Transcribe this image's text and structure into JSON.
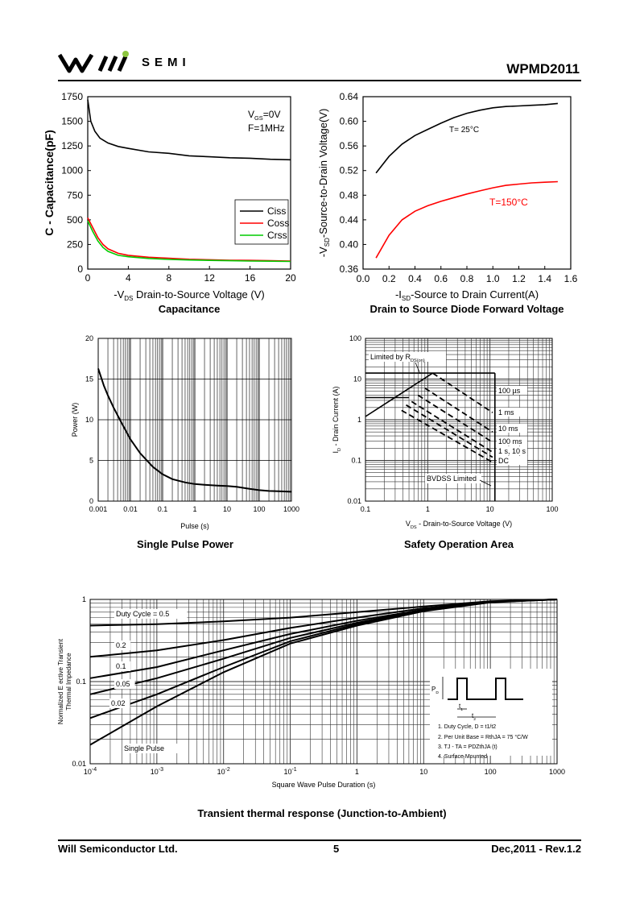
{
  "header": {
    "brand": "SEMI",
    "part_number": "WPMD2011",
    "accent_color": "#8dc63f"
  },
  "footer": {
    "company": "Will  Semiconductor  Ltd.",
    "page": "5",
    "revision": "Dec,2011 - Rev.1.2"
  },
  "chart_data": [
    {
      "id": "capacitance",
      "type": "line",
      "title": "Capacitance",
      "xlabel": "-V_DS Drain-to-Source Voltage (V)",
      "ylabel": "C - Capacitance(pF)",
      "xlim": [
        0,
        20
      ],
      "ylim": [
        0,
        1750
      ],
      "xticks": [
        0,
        4,
        8,
        12,
        16,
        20
      ],
      "yticks": [
        0,
        250,
        500,
        750,
        1000,
        1250,
        1500,
        1750
      ],
      "annotations": [
        "V_GS=0V",
        "F=1MHz"
      ],
      "series": [
        {
          "name": "Ciss",
          "color": "#000000",
          "x": [
            0,
            0.3,
            0.7,
            1.2,
            2,
            3,
            4,
            6,
            8,
            10,
            12,
            14,
            16,
            18,
            20
          ],
          "y": [
            1720,
            1500,
            1400,
            1330,
            1280,
            1245,
            1225,
            1190,
            1175,
            1150,
            1140,
            1130,
            1125,
            1115,
            1110
          ]
        },
        {
          "name": "Coss",
          "color": "#ff0000",
          "x": [
            0,
            0.5,
            1,
            1.5,
            2,
            3,
            4,
            6,
            8,
            10,
            12,
            14,
            16,
            18,
            20
          ],
          "y": [
            520,
            420,
            320,
            250,
            205,
            160,
            140,
            120,
            110,
            100,
            95,
            90,
            88,
            85,
            82
          ]
        },
        {
          "name": "Crss",
          "color": "#00cc00",
          "x": [
            0,
            0.5,
            1,
            1.5,
            2,
            3,
            4,
            6,
            8,
            10,
            12,
            14,
            16,
            18,
            20
          ],
          "y": [
            490,
            380,
            285,
            220,
            180,
            140,
            125,
            108,
            98,
            92,
            88,
            85,
            82,
            80,
            78
          ]
        }
      ]
    },
    {
      "id": "diode",
      "type": "line",
      "title": "Drain to Source Diode Forward Voltage",
      "xlabel": "-I_SD-Source to Drain Current(A)",
      "ylabel": "-V_SD-Source-to-Drain Voltage(V)",
      "xlim": [
        0,
        1.6
      ],
      "ylim": [
        0.36,
        0.64
      ],
      "xticks": [
        0.0,
        0.2,
        0.4,
        0.6,
        0.8,
        1.0,
        1.2,
        1.4,
        1.6
      ],
      "yticks": [
        0.36,
        0.4,
        0.44,
        0.48,
        0.52,
        0.56,
        0.6,
        0.64
      ],
      "series": [
        {
          "name": "T= 25°C",
          "color": "#000000",
          "x": [
            0.1,
            0.2,
            0.3,
            0.4,
            0.5,
            0.6,
            0.7,
            0.8,
            0.9,
            1.0,
            1.1,
            1.2,
            1.3,
            1.4,
            1.5
          ],
          "y": [
            0.516,
            0.543,
            0.563,
            0.577,
            0.587,
            0.597,
            0.606,
            0.613,
            0.618,
            0.622,
            0.624,
            0.625,
            0.626,
            0.627,
            0.629
          ]
        },
        {
          "name": "T=150°C",
          "color": "#ff0000",
          "x": [
            0.1,
            0.2,
            0.3,
            0.4,
            0.5,
            0.6,
            0.7,
            0.8,
            0.9,
            1.0,
            1.1,
            1.2,
            1.3,
            1.4,
            1.5
          ],
          "y": [
            0.378,
            0.415,
            0.44,
            0.454,
            0.463,
            0.47,
            0.476,
            0.482,
            0.487,
            0.492,
            0.496,
            0.498,
            0.5,
            0.501,
            0.502
          ]
        }
      ]
    },
    {
      "id": "single_pulse",
      "type": "line",
      "title": "Single Pulse Power",
      "xlabel": "Pulse (s)",
      "ylabel": "Power (W)",
      "xscale": "log",
      "xlim": [
        0.001,
        1000
      ],
      "ylim": [
        0,
        20
      ],
      "xticks": [
        0.001,
        0.01,
        0.1,
        1,
        10,
        100,
        1000
      ],
      "xticklabels": [
        "0.001",
        "0.01",
        "0.1",
        "1",
        "10",
        "100",
        "1000"
      ],
      "yticks": [
        0,
        5,
        10,
        15,
        20
      ],
      "series": [
        {
          "name": "Single Pulse",
          "color": "#000000",
          "x": [
            0.001,
            0.0015,
            0.002,
            0.003,
            0.005,
            0.01,
            0.02,
            0.05,
            0.1,
            0.2,
            0.5,
            1,
            2,
            5,
            10,
            20,
            50,
            100,
            200,
            500,
            1000
          ],
          "y": [
            16.3,
            14.2,
            13.0,
            11.5,
            9.8,
            7.6,
            5.9,
            4.2,
            3.3,
            2.7,
            2.3,
            2.1,
            2.0,
            1.9,
            1.85,
            1.75,
            1.5,
            1.35,
            1.25,
            1.2,
            1.15
          ]
        }
      ]
    },
    {
      "id": "soa",
      "type": "line",
      "title": "Safety Operation Area",
      "xlabel": "V_DS - Drain-to-Source Voltage (V)",
      "ylabel": "I_D - Drain Current (A)",
      "xscale": "log",
      "yscale": "log",
      "xlim": [
        0.1,
        100
      ],
      "ylim": [
        0.01,
        100
      ],
      "xticks": [
        0.1,
        1,
        10,
        100
      ],
      "xticklabels": [
        "0.1",
        "1",
        "10",
        "100"
      ],
      "yticks": [
        0.01,
        0.1,
        1,
        10,
        100
      ],
      "yticklabels": [
        "0.01",
        "0.1",
        "1",
        "10",
        "100"
      ],
      "annotations": [
        "Limited by R_DS(on)",
        "BVDSS Limited"
      ],
      "series": [
        {
          "name": "R_DS(on) limit",
          "style": "solid",
          "x": [
            0.1,
            1.2
          ],
          "y": [
            1.2,
            14
          ]
        },
        {
          "name": "Current limit 14A",
          "style": "solid",
          "x": [
            0.1,
            12
          ],
          "y": [
            14,
            14
          ]
        },
        {
          "name": "Current limit 3.5A",
          "style": "solid",
          "x": [
            0.1,
            0.5
          ],
          "y": [
            3.5,
            3.5
          ]
        },
        {
          "name": "BVDSS limit",
          "style": "solid",
          "x": [
            12,
            12
          ],
          "y": [
            0.01,
            14
          ]
        },
        {
          "name": "100 µs",
          "style": "dashed",
          "x": [
            1.2,
            11
          ],
          "y": [
            14,
            1.5
          ]
        },
        {
          "name": "1 ms",
          "style": "dashed",
          "x": [
            0.9,
            11
          ],
          "y": [
            6,
            0.5
          ]
        },
        {
          "name": "10 ms",
          "style": "dashed",
          "x": [
            0.7,
            11
          ],
          "y": [
            4,
            0.28
          ]
        },
        {
          "name": "100 ms",
          "style": "dashed",
          "x": [
            0.55,
            11
          ],
          "y": [
            2.8,
            0.16
          ]
        },
        {
          "name": "1 s, 10 s",
          "style": "dashed",
          "x": [
            0.45,
            11
          ],
          "y": [
            2.3,
            0.12
          ]
        },
        {
          "name": "DC",
          "style": "dashed",
          "x": [
            0.38,
            11
          ],
          "y": [
            1.7,
            0.09
          ]
        }
      ]
    },
    {
      "id": "transient",
      "type": "line",
      "title": "Transient thermal response (Junction-to-Ambient)",
      "xlabel": "Square Wave Pulse Duration (s)",
      "ylabel": "Normalized E ective Transient Thermal Impedance",
      "xscale": "log",
      "yscale": "log",
      "xlim": [
        0.0001,
        1000
      ],
      "ylim": [
        0.01,
        1
      ],
      "xticks": [
        0.0001,
        0.001,
        0.01,
        0.1,
        1,
        10,
        100,
        1000
      ],
      "xticklabels": [
        "10-4",
        "10-3",
        "10-2",
        "10-1",
        "1",
        "10",
        "100",
        "1000"
      ],
      "yticks": [
        0.01,
        0.1,
        1
      ],
      "yticklabels": [
        "0.01",
        "0.1",
        "1"
      ],
      "notes": [
        "1. Duty Cycle, D = t1/t2",
        "2. Per Unit Base = RthJA = 75 °C/W",
        "3. TJ - TA = PDZthJA (t)",
        "4. Surface Mounted"
      ],
      "inset_labels": [
        "PD",
        "t1",
        "t2"
      ],
      "series": [
        {
          "name": "Duty Cycle = 0.5",
          "x": [
            0.0001,
            0.001,
            0.01,
            0.1,
            1,
            10,
            100,
            1000
          ],
          "y": [
            0.48,
            0.5,
            0.54,
            0.6,
            0.7,
            0.82,
            0.95,
            1.0
          ]
        },
        {
          "name": "0.2",
          "x": [
            0.0001,
            0.001,
            0.01,
            0.1,
            1,
            10,
            100,
            1000
          ],
          "y": [
            0.2,
            0.24,
            0.32,
            0.45,
            0.6,
            0.78,
            0.94,
            1.0
          ]
        },
        {
          "name": "0.1",
          "x": [
            0.0001,
            0.001,
            0.01,
            0.1,
            1,
            10,
            100,
            1000
          ],
          "y": [
            0.11,
            0.15,
            0.24,
            0.38,
            0.55,
            0.75,
            0.93,
            1.0
          ]
        },
        {
          "name": "0.05",
          "x": [
            0.0001,
            0.001,
            0.01,
            0.1,
            1,
            10,
            100,
            1000
          ],
          "y": [
            0.07,
            0.11,
            0.19,
            0.34,
            0.52,
            0.74,
            0.93,
            1.0
          ]
        },
        {
          "name": "0.02",
          "x": [
            0.0001,
            0.001,
            0.01,
            0.1,
            1,
            10,
            100,
            1000
          ],
          "y": [
            0.036,
            0.07,
            0.15,
            0.31,
            0.5,
            0.73,
            0.93,
            1.0
          ]
        },
        {
          "name": "Single Pulse",
          "x": [
            0.0001,
            0.001,
            0.01,
            0.1,
            1,
            10,
            100,
            1000
          ],
          "y": [
            0.017,
            0.05,
            0.13,
            0.29,
            0.48,
            0.72,
            0.92,
            1.0
          ]
        }
      ]
    }
  ]
}
